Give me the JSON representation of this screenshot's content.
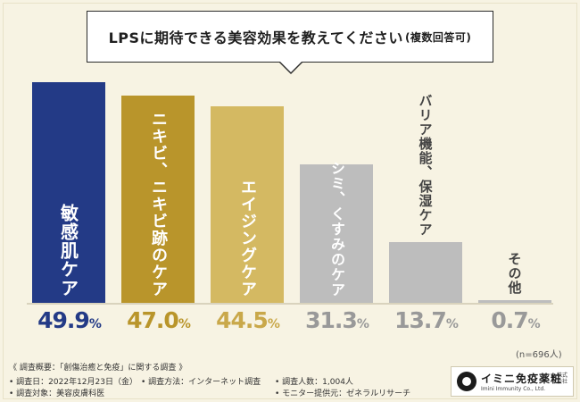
{
  "chart_data": {
    "type": "bar",
    "title": "LPSに期待できる美容効果を教えてください",
    "title_suffix": "(複数回答可)",
    "categories": [
      "敏感肌ケア",
      "ニキビ、ニキビ跡のケア",
      "エイジングケア",
      "シミ、くすみのケア",
      "バリア機能、保湿ケア",
      "その他"
    ],
    "values": [
      49.9,
      47.0,
      44.5,
      31.3,
      13.7,
      0.7
    ],
    "value_labels": [
      "49.9",
      "47.0",
      "44.5",
      "31.3",
      "13.7",
      "0.7"
    ],
    "unit": "%",
    "ylim": [
      0,
      50
    ],
    "sample_note": "(n=696人)",
    "bar_colors": [
      "#233a86",
      "#b9952b",
      "#d4b962",
      "#bdbdbd",
      "#bdbdbd",
      "#bdbdbd"
    ],
    "label_colors": [
      "#ffffff",
      "#ffffff",
      "#ffffff",
      "#ffffff",
      "#444444",
      "#444444"
    ],
    "value_colors": [
      "#233a86",
      "#b9952b",
      "#c9a84a",
      "#999999",
      "#999999",
      "#999999"
    ]
  },
  "footer": {
    "summary": "《 調査概要：「創傷治癒と免疫」に関する調査 》",
    "date": "• 調査日：2022年12月23日（金）",
    "method": "• 調査方法：インターネット調査",
    "count": "• 調査人数：1,004人",
    "target": "• 調査対象：美容皮膚科医",
    "provider": "• モニター提供元：ゼネラルリサーチ"
  },
  "logo": {
    "name": "イミニ免疫薬粧",
    "sub": "Imini Immunity Co., Ltd.",
    "suffix": "株式会社"
  }
}
